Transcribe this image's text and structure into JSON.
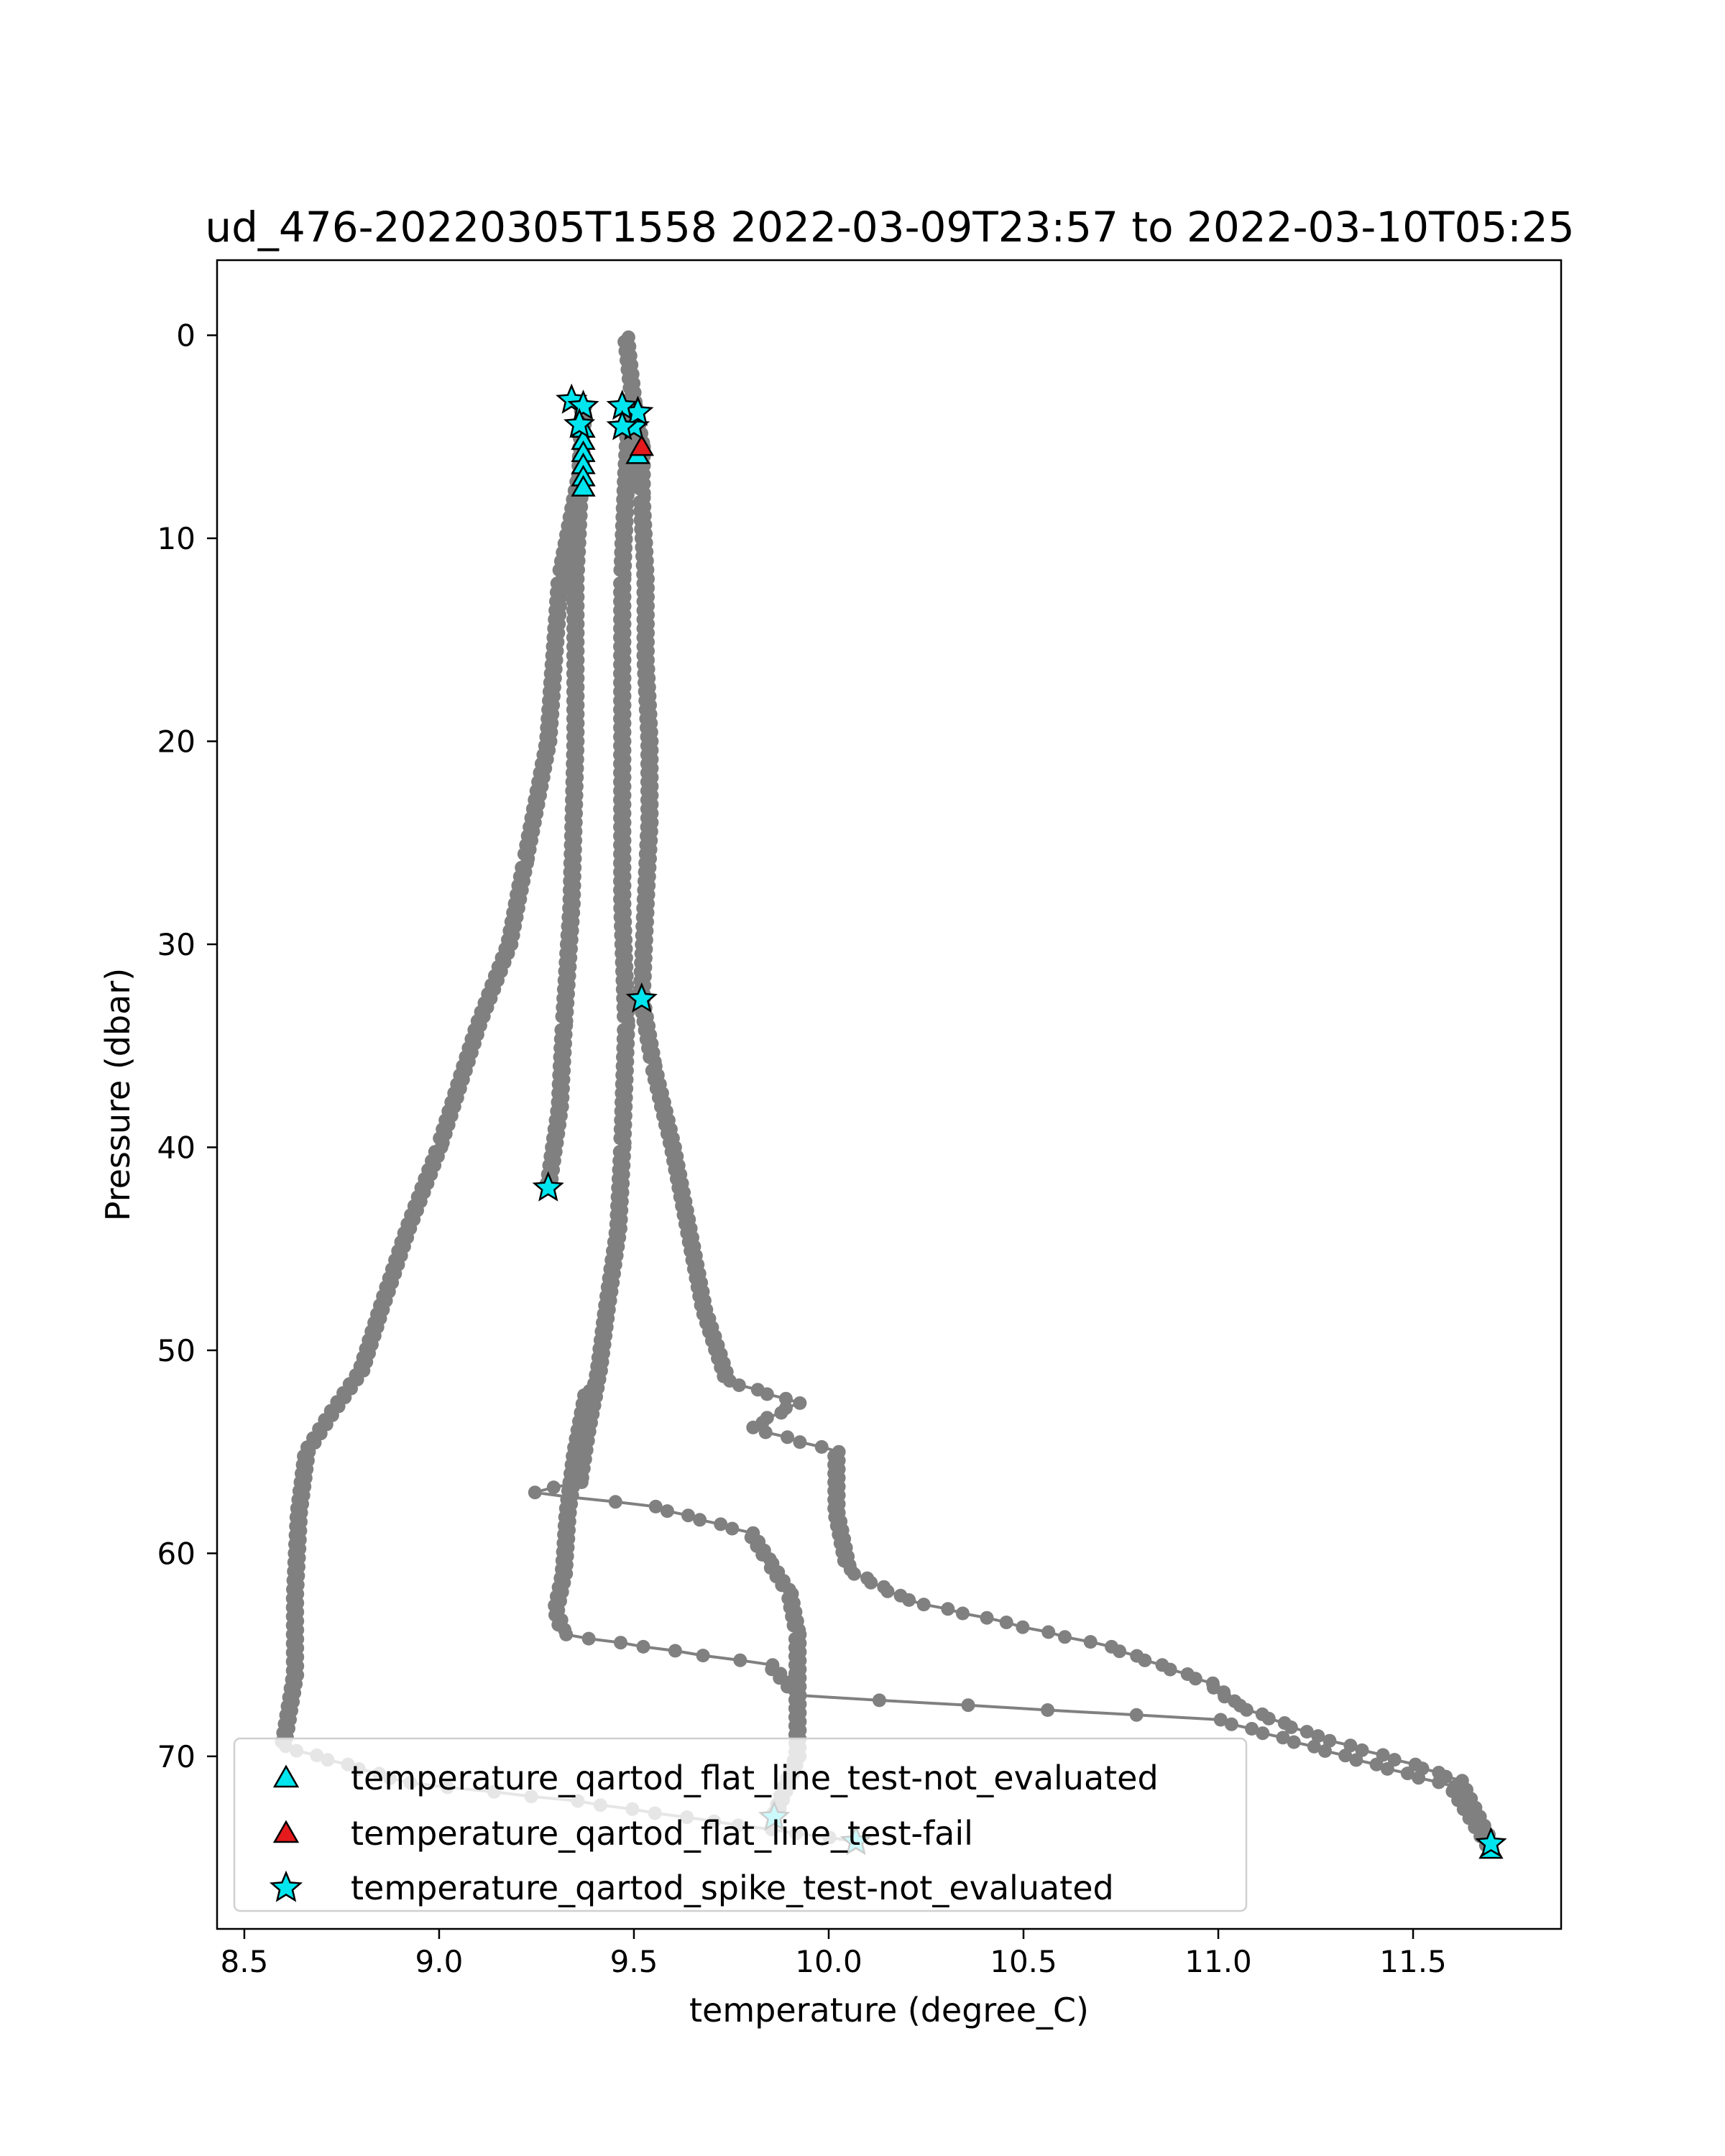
{
  "chart_data": {
    "type": "line",
    "title": "ud_476-20220305T1558 2022-03-09T23:57 to 2022-03-10T05:25",
    "xlabel": "temperature (degree_C)",
    "ylabel": "Pressure (dbar)",
    "xlim": [
      8.43,
      11.88
    ],
    "ylim": [
      78.5,
      -3.7
    ],
    "y_inverted": true,
    "xticks": [
      8.5,
      9.0,
      9.5,
      10.0,
      10.5,
      11.0,
      11.5
    ],
    "xtick_labels": [
      "8.5",
      "9.0",
      "9.5",
      "10.0",
      "10.5",
      "11.0",
      "11.5"
    ],
    "yticks": [
      0,
      10,
      20,
      30,
      40,
      50,
      60,
      70
    ],
    "ytick_labels": [
      "0",
      "10",
      "20",
      "30",
      "40",
      "50",
      "60",
      "70"
    ],
    "grid": false,
    "legend_position": "lower-left",
    "profile_color": "#808080",
    "series": [
      {
        "points": [
          [
            9.48,
            0.1
          ],
          [
            9.5,
            3.5
          ],
          [
            9.52,
            5.5
          ],
          [
            9.52,
            8
          ],
          [
            9.53,
            12
          ],
          [
            9.53,
            16
          ],
          [
            9.54,
            20
          ],
          [
            9.54,
            24
          ],
          [
            9.53,
            28
          ],
          [
            9.52,
            32.7
          ],
          [
            9.55,
            36
          ],
          [
            9.6,
            40
          ],
          [
            9.64,
            44
          ],
          [
            9.68,
            48
          ],
          [
            9.74,
            51.5
          ],
          [
            9.92,
            52.6
          ],
          [
            9.8,
            53.8
          ],
          [
            10.02,
            55.0
          ],
          [
            10.02,
            58
          ],
          [
            10.05,
            60.8
          ],
          [
            10.2,
            62.3
          ],
          [
            10.45,
            63.4
          ],
          [
            10.72,
            64.6
          ],
          [
            10.98,
            66.4
          ],
          [
            11.05,
            67.5
          ],
          [
            11.25,
            69
          ],
          [
            11.5,
            70.4
          ],
          [
            11.62,
            71.2
          ],
          [
            11.7,
            74.3
          ]
        ],
        "markers": [
          [
            9.5,
            4.5
          ],
          [
            9.51,
            3.8
          ],
          [
            9.52,
            32.7
          ],
          [
            11.7,
            74.3
          ]
        ]
      },
      {
        "points": [
          [
            9.49,
            3.5
          ],
          [
            9.48,
            7
          ],
          [
            9.47,
            12
          ],
          [
            9.47,
            20
          ],
          [
            9.47,
            28
          ],
          [
            9.48,
            34
          ],
          [
            9.47,
            40
          ],
          [
            9.46,
            44
          ],
          [
            9.43,
            48
          ],
          [
            9.41,
            51
          ],
          [
            9.38,
            54
          ],
          [
            9.36,
            56.5
          ],
          [
            9.24,
            57.0
          ],
          [
            9.55,
            57.7
          ],
          [
            9.8,
            59
          ],
          [
            9.85,
            60.5
          ],
          [
            9.9,
            62
          ],
          [
            9.92,
            64
          ],
          [
            9.92,
            67
          ],
          [
            9.92,
            70
          ],
          [
            9.86,
            73.0
          ]
        ],
        "markers": [
          [
            9.47,
            3.5
          ],
          [
            9.47,
            4.5
          ],
          [
            9.86,
            73.0
          ]
        ]
      },
      {
        "points": [
          [
            9.37,
            3.5
          ],
          [
            9.36,
            8
          ],
          [
            9.35,
            12
          ],
          [
            9.35,
            20
          ],
          [
            9.34,
            28
          ],
          [
            9.32,
            34
          ],
          [
            9.31,
            38
          ],
          [
            9.28,
            42
          ]
        ],
        "markers": [
          [
            9.34,
            3.2
          ],
          [
            9.37,
            3.5
          ],
          [
            9.36,
            4.4
          ],
          [
            9.28,
            42
          ]
        ]
      },
      {
        "points": [
          [
            9.36,
            7
          ],
          [
            9.31,
            12
          ],
          [
            9.28,
            20
          ],
          [
            9.22,
            26
          ],
          [
            9.18,
            30
          ],
          [
            9.1,
            34
          ],
          [
            9.0,
            40
          ],
          [
            8.92,
            44
          ],
          [
            8.85,
            48
          ],
          [
            8.8,
            51
          ],
          [
            8.72,
            53.2
          ],
          [
            8.66,
            55
          ],
          [
            8.64,
            58
          ],
          [
            8.63,
            62
          ],
          [
            8.63,
            66
          ],
          [
            8.6,
            69.5
          ],
          [
            8.92,
            71.3
          ],
          [
            9.35,
            72.2
          ],
          [
            9.7,
            73.2
          ],
          [
            10.07,
            74.2
          ]
        ],
        "markers": [
          [
            10.07,
            74.2
          ]
        ]
      },
      {
        "points": [
          [
            9.38,
            52
          ],
          [
            9.35,
            55
          ],
          [
            9.33,
            58
          ],
          [
            9.32,
            61
          ],
          [
            9.3,
            62.8
          ],
          [
            9.32,
            64
          ],
          [
            9.6,
            64.8
          ],
          [
            9.85,
            65.5
          ],
          [
            9.92,
            67
          ],
          [
            11.0,
            68.2
          ],
          [
            11.4,
            70.4
          ],
          [
            11.6,
            71.5
          ],
          [
            11.7,
            74.6
          ]
        ],
        "markers": []
      }
    ],
    "flat_line_not_evaluated": [
      [
        9.37,
        4.6
      ],
      [
        9.37,
        5.2
      ],
      [
        9.37,
        5.8
      ],
      [
        9.37,
        6.4
      ],
      [
        9.37,
        7.0
      ],
      [
        9.37,
        7.5
      ],
      [
        9.51,
        5.9
      ],
      [
        11.7,
        74.6
      ]
    ],
    "flat_line_fail": [
      [
        9.52,
        5.5
      ]
    ],
    "legend": [
      {
        "label": "temperature_qartod_flat_line_test-not_evaluated",
        "marker": "triangle",
        "color": "#00e5ee"
      },
      {
        "label": "temperature_qartod_flat_line_test-fail",
        "marker": "triangle",
        "color": "#e41a1c"
      },
      {
        "label": "temperature_qartod_spike_test-not_evaluated",
        "marker": "star",
        "color": "#00e5ee"
      }
    ]
  }
}
